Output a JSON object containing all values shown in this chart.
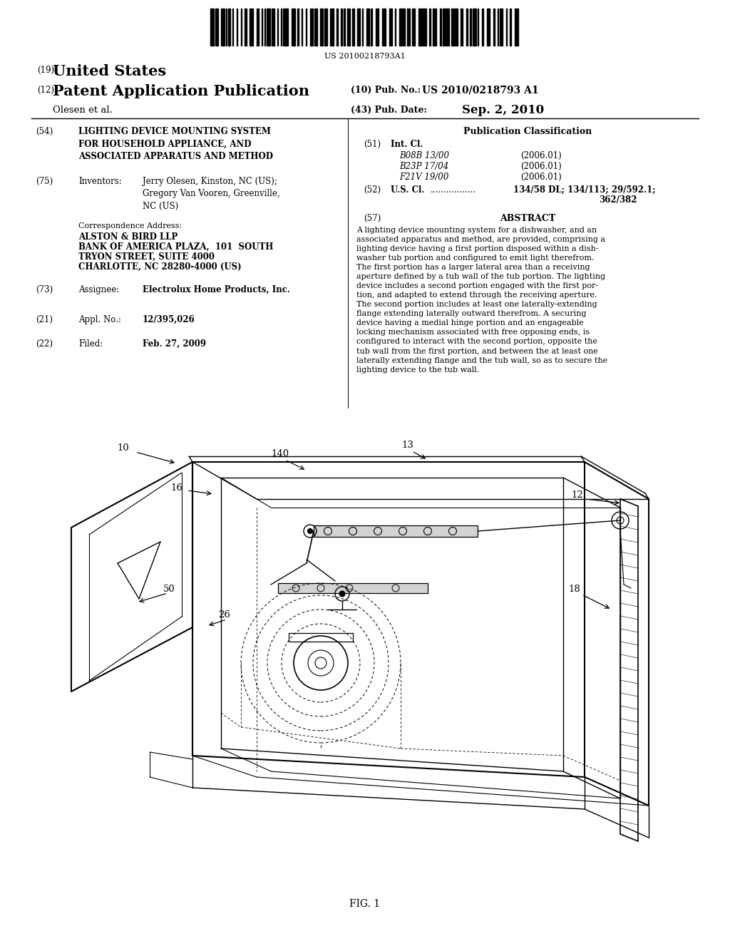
{
  "background_color": "#ffffff",
  "barcode_text": "US 20100218793A1",
  "header": {
    "country_label": "(19)",
    "country": "United States",
    "type_label": "(12)",
    "type": "Patent Application Publication",
    "pub_no_label": "(10) Pub. No.:",
    "pub_no": "US 2010/0218793 A1",
    "date_label": "(43) Pub. Date:",
    "date": "Sep. 2, 2010",
    "author": "Olesen et al."
  },
  "left_column": {
    "title_num": "(54)",
    "title": "LIGHTING DEVICE MOUNTING SYSTEM\nFOR HOUSEHOLD APPLIANCE, AND\nASSOCIATED APPARATUS AND METHOD",
    "inventors_num": "(75)",
    "inventors_label": "Inventors:",
    "inventors": "Jerry Olesen, Kinston, NC (US);\nGregory Van Vooren, Greenville,\nNC (US)",
    "corr_label": "Correspondence Address:",
    "corr_line1": "ALSTON & BIRD LLP",
    "corr_line2": "BANK OF AMERICA PLAZA,  101  SOUTH",
    "corr_line3": "TRYON STREET, SUITE 4000",
    "corr_line4": "CHARLOTTE, NC 28280-4000 (US)",
    "assignee_num": "(73)",
    "assignee_label": "Assignee:",
    "assignee": "Electrolux Home Products, Inc.",
    "appl_num": "(21)",
    "appl_label": "Appl. No.:",
    "appl_no": "12/395,026",
    "filed_num": "(22)",
    "filed_label": "Filed:",
    "filed_date": "Feb. 27, 2009"
  },
  "right_column": {
    "pub_class_title": "Publication Classification",
    "intcl_num": "(51)",
    "intcl_label": "Int. Cl.",
    "intcl_entries": [
      [
        "B08B 13/00",
        "(2006.01)"
      ],
      [
        "B23P 17/04",
        "(2006.01)"
      ],
      [
        "F21V 19/00",
        "(2006.01)"
      ]
    ],
    "uscl_num": "(52)",
    "uscl_label": "U.S. Cl.",
    "uscl_dots": ".................",
    "uscl_value1": "134/58 DL; 134/113; 29/592.1;",
    "uscl_value2": "362/382",
    "abstract_num": "(57)",
    "abstract_title": "ABSTRACT",
    "abstract_text": "A lighting device mounting system for a dishwasher, and an\nassociated apparatus and method, are provided, comprising a\nlighting device having a first portion disposed within a dish-\nwasher tub portion and configured to emit light therefrom.\nThe first portion has a larger lateral area than a receiving\naperture defined by a tub wall of the tub portion. The lighting\ndevice includes a second portion engaged with the first por-\ntion, and adapted to extend through the receiving aperture.\nThe second portion includes at least one laterally-extending\nflange extending laterally outward therefrom. A securing\ndevice having a medial hinge portion and an engageable\nlocking mechanism associated with free opposing ends, is\nconfigured to interact with the second portion, opposite the\ntub wall from the first portion, and between the at least one\nlaterally extending flange and the tub wall, so as to secure the\nlighting device to the tub wall."
  },
  "fig_label": "FIG. 1"
}
